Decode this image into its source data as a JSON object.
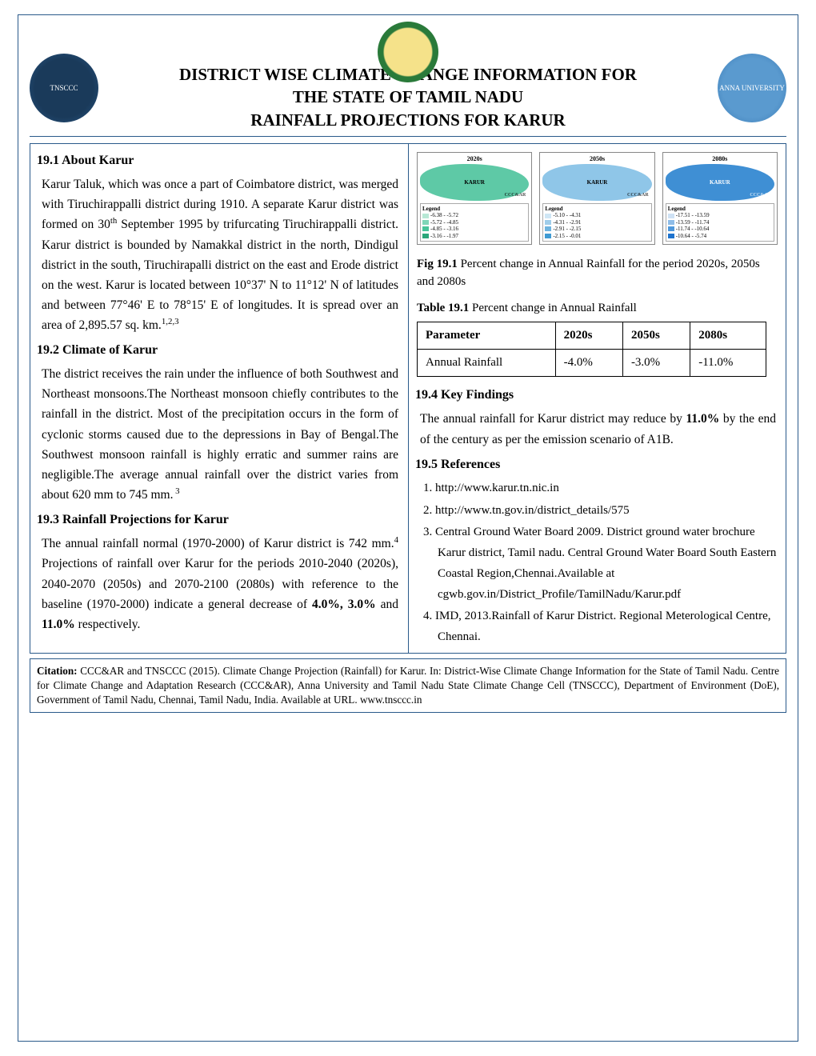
{
  "header": {
    "title_line1": "DISTRICT WISE CLIMATE CHANGE INFORMATION FOR",
    "title_line2": "THE STATE OF TAMIL NADU",
    "title_line3": "RAINFALL PROJECTIONS FOR KARUR",
    "logo_left_label": "TNSCCC",
    "logo_right_label": "ANNA UNIVERSITY"
  },
  "sections": {
    "s1": {
      "head": "19.1   About Karur",
      "para_a": "Karur Taluk, which was once a part of Coimbatore district, was merged with Tiruchirappalli district during 1910. A separate Karur district was formed on 30",
      "sup1": "th",
      "para_b": " September 1995 by trifurcating Tiruchirappalli district. Karur district is bounded by Namakkal district in the north, Dindigul district in the south, Tiruchirapalli district on the east and Erode district on the west. Karur is located between 10°37' N to 11°12' N of latitudes and between 77°46' E to 78°15' E  of longitudes. It is spread over an area of 2,895.57 sq. km.",
      "sup2": "1,2,3"
    },
    "s2": {
      "head": "19.2    Climate of Karur",
      "para": "The district receives  the  rain  under  the  influence of  both  Southwest  and  Northeast monsoons.The Northeast monsoon chiefly contributes to the rainfall in the district. Most of the precipitation occurs in the form of cyclonic storms caused due  to  the depressions  in  Bay  of  Bengal.The Southwest monsoon rainfall is highly erratic and  summer   rains   are   negligible.The  average annual  rainfall over  the  district  varies  from  about 620  mm  to  745  mm.",
      "sup": " 3"
    },
    "s3": {
      "head": "19.3    Rainfall Projections for  Karur",
      "para_a": "The annual rainfall normal (1970-2000) of Karur district is 742 mm.",
      "sup": "4",
      "para_b": " Projections of rainfall over Karur for the periods 2010-2040 (2020s), 2040-2070 (2050s) and 2070-2100 (2080s) with reference to the baseline (1970-2000) indicate a general decrease of  ",
      "bold": "4.0%, 3.0%",
      "mid": "  and  ",
      "bold2": "11.0%",
      "para_c": " respectively."
    },
    "s4": {
      "head": "19.4   Key Findings",
      "para_a": "The annual rainfall for Karur district may reduce by ",
      "bold": "11.0%",
      "para_b": "  by the end of the century as per the emission scenario of A1B."
    },
    "s5": {
      "head": "19.5    References",
      "items": [
        "1.  http://www.karur.tn.nic.in",
        "2. http://www.tn.gov.in/district_details/575",
        "3. Central Ground Water Board 2009. District ground water brochure Karur district, Tamil nadu. Central Ground Water Board South Eastern Coastal Region,Chennai.Available at cgwb.gov.in/District_Profile/TamilNadu/Karur.pdf",
        "4. IMD, 2013.Rainfall of  Karur  District. Regional Meterological Centre, Chennai."
      ]
    }
  },
  "figure": {
    "caption_bold": "Fig 19.1",
    "caption_rest": " Percent change in Annual Rainfall for the period 2020s, 2050s and 2080s",
    "panels": [
      {
        "title": "2020s",
        "map_color": "#5ec9a6",
        "label": "KARUR",
        "watermark": "CCC&AR",
        "legend": [
          {
            "color": "#b7e8d5",
            "text": "-6.38 - -5.72"
          },
          {
            "color": "#7fd6b8",
            "text": "-5.72 - -4.85"
          },
          {
            "color": "#48c49a",
            "text": "-4.85 - -3.16"
          },
          {
            "color": "#2aa77a",
            "text": "-3.16 - -1.97"
          }
        ]
      },
      {
        "title": "2050s",
        "map_color": "#8fc6e8",
        "label": "KARUR",
        "watermark": "CCC&AR",
        "legend": [
          {
            "color": "#cfe6f5",
            "text": "-5.10 - -4.31"
          },
          {
            "color": "#9fcdea",
            "text": "-4.31 - -2.91"
          },
          {
            "color": "#6fb4df",
            "text": "-2.91 - -2.15"
          },
          {
            "color": "#3f9bd4",
            "text": "-2.15 - -0.01"
          }
        ]
      },
      {
        "title": "2080s",
        "map_color": "#3f8fd4",
        "label": "KARUR",
        "label_color": "#ffffff",
        "watermark": "CCC&AR",
        "legend": [
          {
            "color": "#cfe2f5",
            "text": "-17.51 - -13.59"
          },
          {
            "color": "#8fbde8",
            "text": "-13.59 - -11.74"
          },
          {
            "color": "#4f98db",
            "text": "-11.74 - -10.64"
          },
          {
            "color": "#1f73ce",
            "text": "-10.64 - -5.74"
          }
        ]
      }
    ]
  },
  "table": {
    "caption_bold": "Table 19.1",
    "caption_rest": "  Percent change in Annual Rainfall",
    "columns": [
      "Parameter",
      "2020s",
      "2050s",
      "2080s"
    ],
    "rows": [
      [
        "Annual Rainfall",
        "-4.0%",
        "-3.0%",
        "-11.0%"
      ]
    ]
  },
  "citation": {
    "label": "Citation:",
    "text": " CCC&AR and TNSCCC (2015). Climate Change Projection (Rainfall) for Karur. In: District-Wise Climate Change Information for the State of Tamil Nadu. Centre for Climate Change and Adaptation Research (CCC&AR), Anna University and Tamil Nadu State Climate Change Cell (TNSCCC), Department of Environment (DoE), Government of Tamil Nadu, Chennai, Tamil Nadu, India. Available at URL. www.tnsccc.in"
  }
}
